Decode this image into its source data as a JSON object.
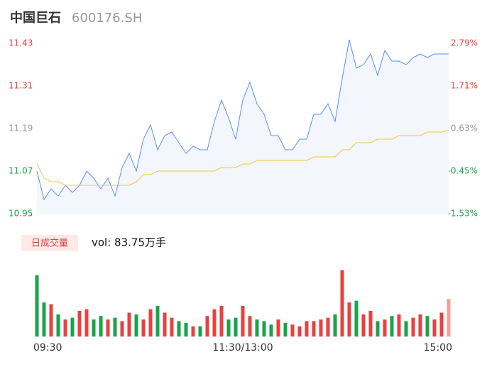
{
  "chart_data": {
    "type": "intraday",
    "title": "中国巨石",
    "subtitle": "600176.SH",
    "ylim": [
      10.95,
      11.43
    ],
    "yticks": [
      10.95,
      11.07,
      11.19,
      11.31,
      11.43
    ],
    "y2lim": [
      -1.53,
      2.79
    ],
    "y2ticks": [
      {
        "value": -1.53,
        "label": "-1.53%"
      },
      {
        "value": -0.45,
        "label": "-0.45%"
      },
      {
        "value": 0.63,
        "label": "0.63%"
      },
      {
        "value": 1.71,
        "label": "1.71%"
      },
      {
        "value": 2.79,
        "label": "2.79%"
      }
    ],
    "xlim": [
      0,
      58
    ],
    "xticks": [
      {
        "value": 0,
        "label": "09:30"
      },
      {
        "value": 29,
        "label": "11:30/13:00"
      },
      {
        "value": 58,
        "label": "15:00"
      }
    ],
    "series": [
      {
        "color": "#5b8ff9",
        "values": [
          11.07,
          10.99,
          11.02,
          11.0,
          11.03,
          11.01,
          11.03,
          11.07,
          11.05,
          11.02,
          11.05,
          11.0,
          11.08,
          11.12,
          11.07,
          11.16,
          11.2,
          11.13,
          11.17,
          11.18,
          11.15,
          11.12,
          11.14,
          11.13,
          11.13,
          11.21,
          11.27,
          11.22,
          11.16,
          11.27,
          11.32,
          11.26,
          11.23,
          11.17,
          11.17,
          11.13,
          11.13,
          11.16,
          11.16,
          11.23,
          11.23,
          11.26,
          11.21,
          11.33,
          11.44,
          11.36,
          11.37,
          11.4,
          11.34,
          11.41,
          11.38,
          11.38,
          11.37,
          11.39,
          11.4,
          11.39,
          11.4,
          11.4,
          11.4
        ]
      },
      {
        "color": "#f7c443",
        "values": [
          11.09,
          11.05,
          11.04,
          11.04,
          11.03,
          11.03,
          11.03,
          11.03,
          11.03,
          11.03,
          11.03,
          11.03,
          11.03,
          11.03,
          11.04,
          11.06,
          11.06,
          11.07,
          11.07,
          11.07,
          11.07,
          11.07,
          11.07,
          11.07,
          11.07,
          11.07,
          11.08,
          11.08,
          11.08,
          11.09,
          11.09,
          11.1,
          11.1,
          11.1,
          11.1,
          11.1,
          11.1,
          11.1,
          11.1,
          11.11,
          11.11,
          11.11,
          11.11,
          11.13,
          11.13,
          11.15,
          11.15,
          11.15,
          11.16,
          11.16,
          11.16,
          11.17,
          11.17,
          11.17,
          11.17,
          11.18,
          11.18,
          11.18,
          11.185
        ]
      }
    ],
    "volume": {
      "legend": "日成交量",
      "label": "vol: 83.75万手",
      "ylim": [
        0,
        4.5
      ],
      "up_color": "#e8413f",
      "down_color": "#1aa34a",
      "values": [
        3.6,
        2.0,
        1.9,
        1.3,
        1.0,
        1.1,
        1.5,
        1.6,
        1.0,
        1.2,
        1.0,
        1.1,
        0.9,
        1.4,
        1.3,
        1.0,
        1.6,
        1.8,
        1.4,
        1.1,
        0.9,
        0.8,
        0.6,
        0.6,
        1.2,
        1.6,
        1.8,
        1.0,
        1.1,
        1.8,
        1.2,
        1.0,
        0.9,
        0.7,
        1.0,
        0.8,
        0.7,
        0.6,
        0.9,
        0.9,
        1.0,
        1.1,
        1.3,
        3.9,
        2.0,
        2.1,
        1.3,
        1.5,
        0.9,
        1.0,
        1.2,
        1.3,
        0.9,
        1.1,
        1.3,
        1.2,
        1.0,
        1.4,
        2.2
      ]
    }
  }
}
